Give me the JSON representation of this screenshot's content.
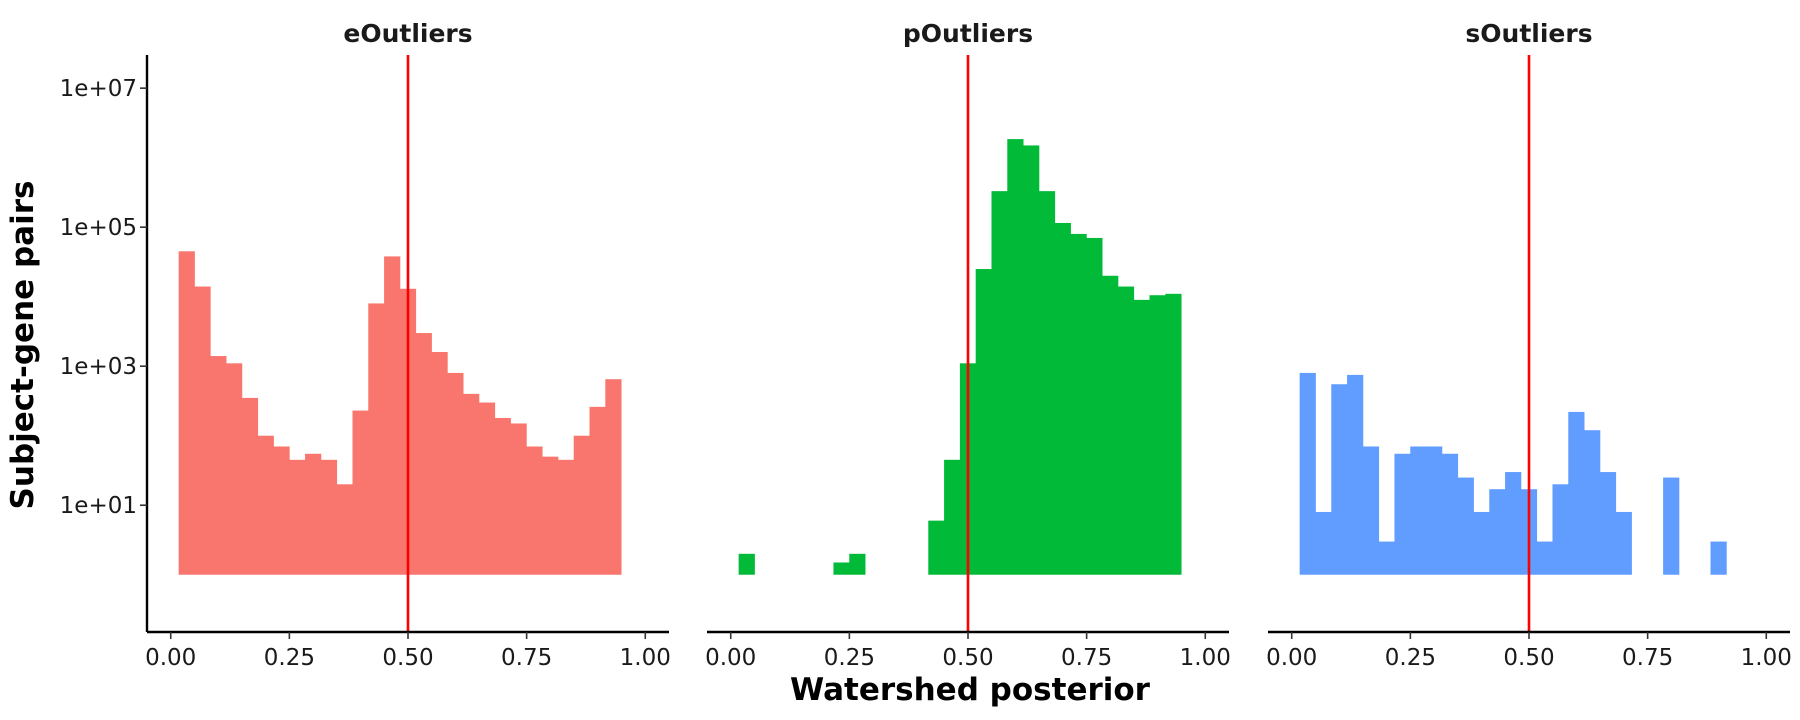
{
  "chart_data": {
    "type": "bar",
    "xlabel": "Watershed posterior",
    "ylabel": "Subject-gene pairs",
    "y_scale": "log10",
    "ylim": [
      0.15,
      30000000
    ],
    "y_ticks": [
      {
        "value": 10,
        "label": "1e+01"
      },
      {
        "value": 1000,
        "label": "1e+03"
      },
      {
        "value": 100000,
        "label": "1e+05"
      },
      {
        "value": 10000000,
        "label": "1e+07"
      }
    ],
    "x_ticks": [
      {
        "value": 0.0,
        "label": "0.00"
      },
      {
        "value": 0.25,
        "label": "0.25"
      },
      {
        "value": 0.5,
        "label": "0.50"
      },
      {
        "value": 0.75,
        "label": "0.75"
      },
      {
        "value": 1.0,
        "label": "1.00"
      }
    ],
    "xlim": [
      -0.05,
      1.05
    ],
    "reference_line": {
      "x": 0.5,
      "color": "#ff0000"
    },
    "bin_edges_start": 0.0167,
    "bin_width": 0.0333,
    "grid": false,
    "panels": [
      {
        "name": "eOutliers",
        "color": "#f8766d",
        "values": [
          45000,
          14000,
          1400,
          1100,
          350,
          100,
          70,
          45,
          55,
          45,
          20,
          230,
          8000,
          38000,
          13000,
          3000,
          1600,
          800,
          400,
          300,
          180,
          150,
          70,
          50,
          45,
          100,
          260,
          650
        ]
      },
      {
        "name": "pOutliers",
        "color": "#00ba38",
        "values": [
          2,
          1,
          0,
          0,
          1,
          0,
          1.5,
          2,
          0,
          0,
          1,
          1,
          6,
          45,
          1100,
          25000,
          330000,
          1850000,
          1500000,
          330000,
          115000,
          80000,
          70000,
          20000,
          14000,
          9000,
          10500,
          11000
        ]
      },
      {
        "name": "sOutliers",
        "color": "#619cff",
        "values": [
          800,
          8,
          550,
          750,
          70,
          3,
          55,
          70,
          70,
          55,
          25,
          8,
          17,
          30,
          17,
          3,
          20,
          220,
          120,
          30,
          8,
          0,
          1,
          25,
          0,
          0,
          3,
          0
        ]
      }
    ]
  }
}
